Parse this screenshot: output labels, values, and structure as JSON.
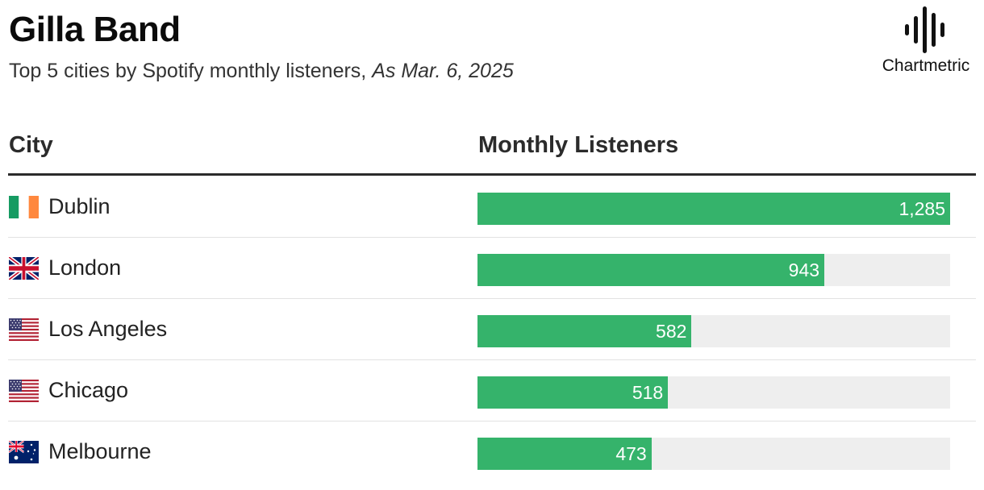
{
  "header": {
    "title": "Gilla Band",
    "subtitle": "Top 5 cities by Spotify monthly listeners,",
    "date": "As Mar. 6, 2025"
  },
  "logo": {
    "text": "Chartmetric",
    "icon": "chartmetric-waveform-icon"
  },
  "colors": {
    "bar": "#35b36b",
    "track": "#eeeeee",
    "rule": "#2b2b2b"
  },
  "chart_data": {
    "type": "bar",
    "orientation": "horizontal",
    "columns": [
      "City",
      "Monthly Listeners"
    ],
    "categories": [
      "Dublin",
      "London",
      "Los Angeles",
      "Chicago",
      "Melbourne"
    ],
    "values": [
      1285,
      943,
      582,
      518,
      473
    ],
    "value_labels": [
      "1,285",
      "943",
      "582",
      "518",
      "473"
    ],
    "flags": [
      "ireland-flag-icon",
      "uk-flag-icon",
      "us-flag-icon",
      "us-flag-icon",
      "australia-flag-icon"
    ],
    "xlim": [
      0,
      1285
    ]
  }
}
